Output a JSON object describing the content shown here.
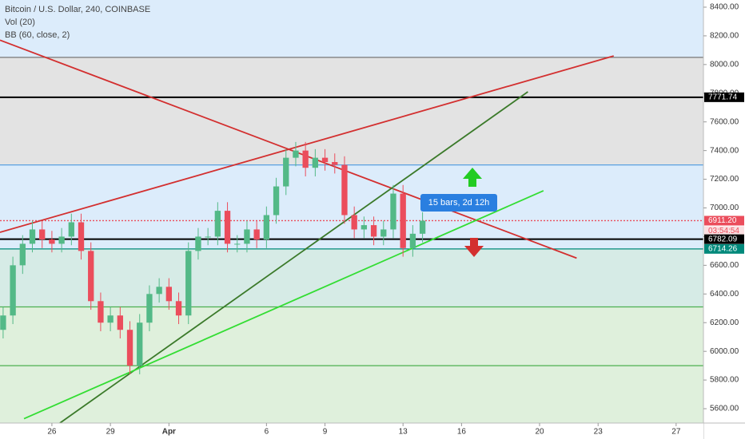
{
  "chart_data": {
    "type": "candlestick",
    "title": "Bitcoin / U.S. Dollar, 240, COINBASE",
    "indicators": [
      "Vol (20)",
      "BB (60, close, 2)"
    ],
    "measure_label": "15 bars, 2d 12h",
    "countdown": "03:54:54",
    "up_color": "#53b987",
    "down_color": "#eb4d5c",
    "xlim": [
      -2.66,
      33.4
    ],
    "xticks": [
      {
        "value": 0,
        "label": "26"
      },
      {
        "value": 3,
        "label": "29"
      },
      {
        "value": 6,
        "label": "Apr"
      },
      {
        "value": 11,
        "label": "6"
      },
      {
        "value": 14,
        "label": "9"
      },
      {
        "value": 18,
        "label": "13"
      },
      {
        "value": 21,
        "label": "16"
      },
      {
        "value": 25,
        "label": "20"
      },
      {
        "value": 28,
        "label": "23"
      },
      {
        "value": 32,
        "label": "27"
      }
    ],
    "ylim": [
      5500,
      8450
    ],
    "yticks": [
      {
        "value": 8400,
        "label": "8400.00"
      },
      {
        "value": 8200,
        "label": "8200.00"
      },
      {
        "value": 8000,
        "label": "8000.00"
      },
      {
        "value": 7800,
        "label": "7800.00"
      },
      {
        "value": 7600,
        "label": "7600.00"
      },
      {
        "value": 7400,
        "label": "7400.00"
      },
      {
        "value": 7200,
        "label": "7200.00"
      },
      {
        "value": 7000,
        "label": "7000.00"
      },
      {
        "value": 6800,
        "label": "6800.00"
      },
      {
        "value": 6600,
        "label": "6600.00"
      },
      {
        "value": 6400,
        "label": "6400.00"
      },
      {
        "value": 6200,
        "label": "6200.00"
      },
      {
        "value": 6000,
        "label": "6000.00"
      },
      {
        "value": 5800,
        "label": "5800.00"
      },
      {
        "value": 5600,
        "label": "5600.00"
      }
    ],
    "zones": [
      {
        "from": 8050,
        "to": 8450,
        "color": "#dcecfb"
      },
      {
        "from": 7300,
        "to": 8050,
        "color": "#e3e3e3"
      },
      {
        "from": 6714.26,
        "to": 7300,
        "color": "#dcecfb"
      },
      {
        "from": 6310,
        "to": 6714.26,
        "color": "#d6ebe6"
      },
      {
        "from": 5500,
        "to": 6310,
        "color": "#dff0dc"
      }
    ],
    "levels": [
      {
        "value": 8050,
        "color": "#777"
      },
      {
        "value": 7771.74,
        "label": "7771.74",
        "color": "#000"
      },
      {
        "value": 7300,
        "color": "#5aa0e0"
      },
      {
        "value": 6911.2,
        "label": "6911.20",
        "color": "#eb4d5c"
      },
      {
        "value": 6782.09,
        "label": "6782.09",
        "color": "#000"
      },
      {
        "value": 6714.26,
        "label": "6714.26",
        "color": "#00897b"
      },
      {
        "value": 6310,
        "color": "#4caf50"
      },
      {
        "value": 5900,
        "color": "#4caf50"
      }
    ],
    "trendlines": [
      {
        "x": [
          -2.66,
          26.9
        ],
        "y": [
          8170,
          6650
        ],
        "color": "#d32f2f"
      },
      {
        "x": [
          -2.66,
          28.8
        ],
        "y": [
          6830,
          8060
        ],
        "color": "#d32f2f"
      },
      {
        "x": [
          0.41,
          24.4
        ],
        "y": [
          5500,
          7810
        ],
        "color": "#3b7a2a"
      },
      {
        "x": [
          -1.43,
          25.2
        ],
        "y": [
          5530,
          7120
        ],
        "color": "#33dd33"
      }
    ],
    "x": [
      -2.5,
      -2,
      -1.5,
      -1,
      -0.5,
      0,
      0.5,
      1,
      1.5,
      2,
      2.5,
      3,
      3.5,
      4,
      4.5,
      5,
      5.5,
      6,
      6.5,
      7,
      7.5,
      8,
      8.5,
      9,
      9.5,
      10,
      10.5,
      11,
      11.5,
      12,
      12.5,
      13,
      13.5,
      14,
      14.5,
      15,
      15.5,
      16,
      16.5,
      17,
      17.5,
      18,
      18.5,
      19
    ],
    "open": [
      6150,
      6250,
      6600,
      6750,
      6850,
      6780,
      6750,
      6800,
      6900,
      6700,
      6350,
      6200,
      6250,
      6150,
      5900,
      6200,
      6400,
      6450,
      6350,
      6250,
      6700,
      6800,
      6800,
      6980,
      6750,
      6750,
      6850,
      6780,
      6950,
      7150,
      7350,
      7400,
      7280,
      7350,
      7320,
      7300,
      6950,
      6850,
      6880,
      6800,
      6850,
      7100,
      6720,
      6820
    ],
    "high": [
      6310,
      6660,
      6810,
      6910,
      6910,
      6840,
      6860,
      6960,
      6960,
      6760,
      6410,
      6310,
      6310,
      6210,
      6260,
      6460,
      6510,
      6510,
      6410,
      6760,
      6860,
      6860,
      7040,
      7040,
      6810,
      6910,
      6910,
      7010,
      7210,
      7410,
      7460,
      7460,
      7410,
      7410,
      7380,
      7360,
      7010,
      6940,
      6940,
      6910,
      7160,
      7160,
      6880,
      6970
    ],
    "low": [
      6090,
      6190,
      6540,
      6690,
      6720,
      6690,
      6690,
      6740,
      6640,
      6290,
      6140,
      6140,
      6090,
      5840,
      5840,
      6140,
      6340,
      6290,
      6190,
      6190,
      6640,
      6740,
      6740,
      6690,
      6690,
      6690,
      6720,
      6720,
      6890,
      7090,
      7290,
      7220,
      7220,
      7260,
      7240,
      6890,
      6790,
      6790,
      6740,
      6740,
      6790,
      6660,
      6660,
      6760
    ],
    "close": [
      6250,
      6600,
      6750,
      6850,
      6780,
      6750,
      6800,
      6900,
      6700,
      6350,
      6200,
      6250,
      6150,
      5900,
      6200,
      6400,
      6450,
      6350,
      6250,
      6700,
      6800,
      6800,
      6980,
      6750,
      6750,
      6850,
      6780,
      6950,
      7150,
      7350,
      7400,
      7280,
      7350,
      7320,
      7300,
      6950,
      6850,
      6880,
      6800,
      6850,
      7100,
      6720,
      6820,
      6911
    ]
  }
}
